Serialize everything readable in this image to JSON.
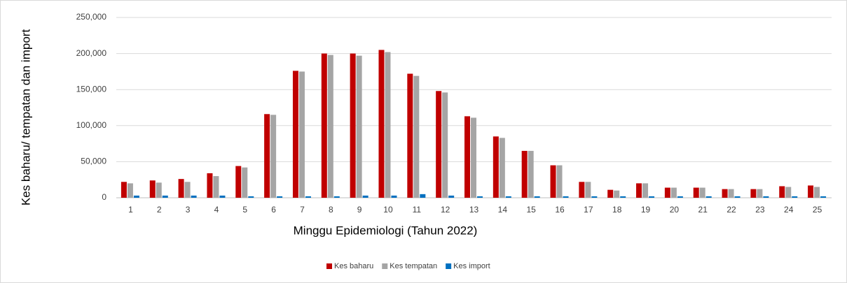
{
  "chart_data": {
    "type": "bar",
    "x_label": "Minggu Epidemiologi (Tahun 2022)",
    "y_label": "Kes baharu/ tempatan dan import",
    "categories": [
      "1",
      "2",
      "3",
      "4",
      "5",
      "6",
      "7",
      "8",
      "9",
      "10",
      "11",
      "12",
      "13",
      "14",
      "15",
      "16",
      "17",
      "18",
      "19",
      "20",
      "21",
      "22",
      "23",
      "24",
      "25"
    ],
    "series": [
      {
        "name": "Kes baharu",
        "color": "#c00000",
        "values": [
          22000,
          24000,
          26000,
          34000,
          44000,
          116000,
          176000,
          200000,
          200000,
          205000,
          172000,
          148000,
          113000,
          85000,
          65000,
          45000,
          22000,
          11000,
          20000,
          14000,
          14000,
          12000,
          12000,
          16000,
          17000
        ]
      },
      {
        "name": "Kes tempatan",
        "color": "#a5a5a5",
        "values": [
          20000,
          21000,
          22000,
          30000,
          42000,
          115000,
          175000,
          198000,
          197000,
          202000,
          169000,
          146000,
          111000,
          83000,
          65000,
          45000,
          22000,
          10000,
          20000,
          14000,
          14000,
          12000,
          12000,
          15000,
          15000
        ]
      },
      {
        "name": "Kes import",
        "color": "#0070c0",
        "values": [
          3000,
          3000,
          3000,
          3000,
          2000,
          2000,
          2000,
          2000,
          3000,
          3000,
          5000,
          3000,
          2000,
          2000,
          2000,
          2000,
          2000,
          2000,
          2000,
          2000,
          2000,
          2000,
          2000,
          2000,
          2000
        ]
      }
    ],
    "ylim": [
      0,
      250000
    ],
    "yticks": [
      0,
      {
        "value": 50000,
        "label": "50,000"
      },
      {
        "value": 100000,
        "label": "100,000"
      },
      {
        "value": 150000,
        "label": "150,000"
      },
      {
        "value": 200000,
        "label": "200,000"
      },
      {
        "value": 250000,
        "label": "250,000"
      }
    ],
    "grid": true,
    "legend": "bottom"
  }
}
